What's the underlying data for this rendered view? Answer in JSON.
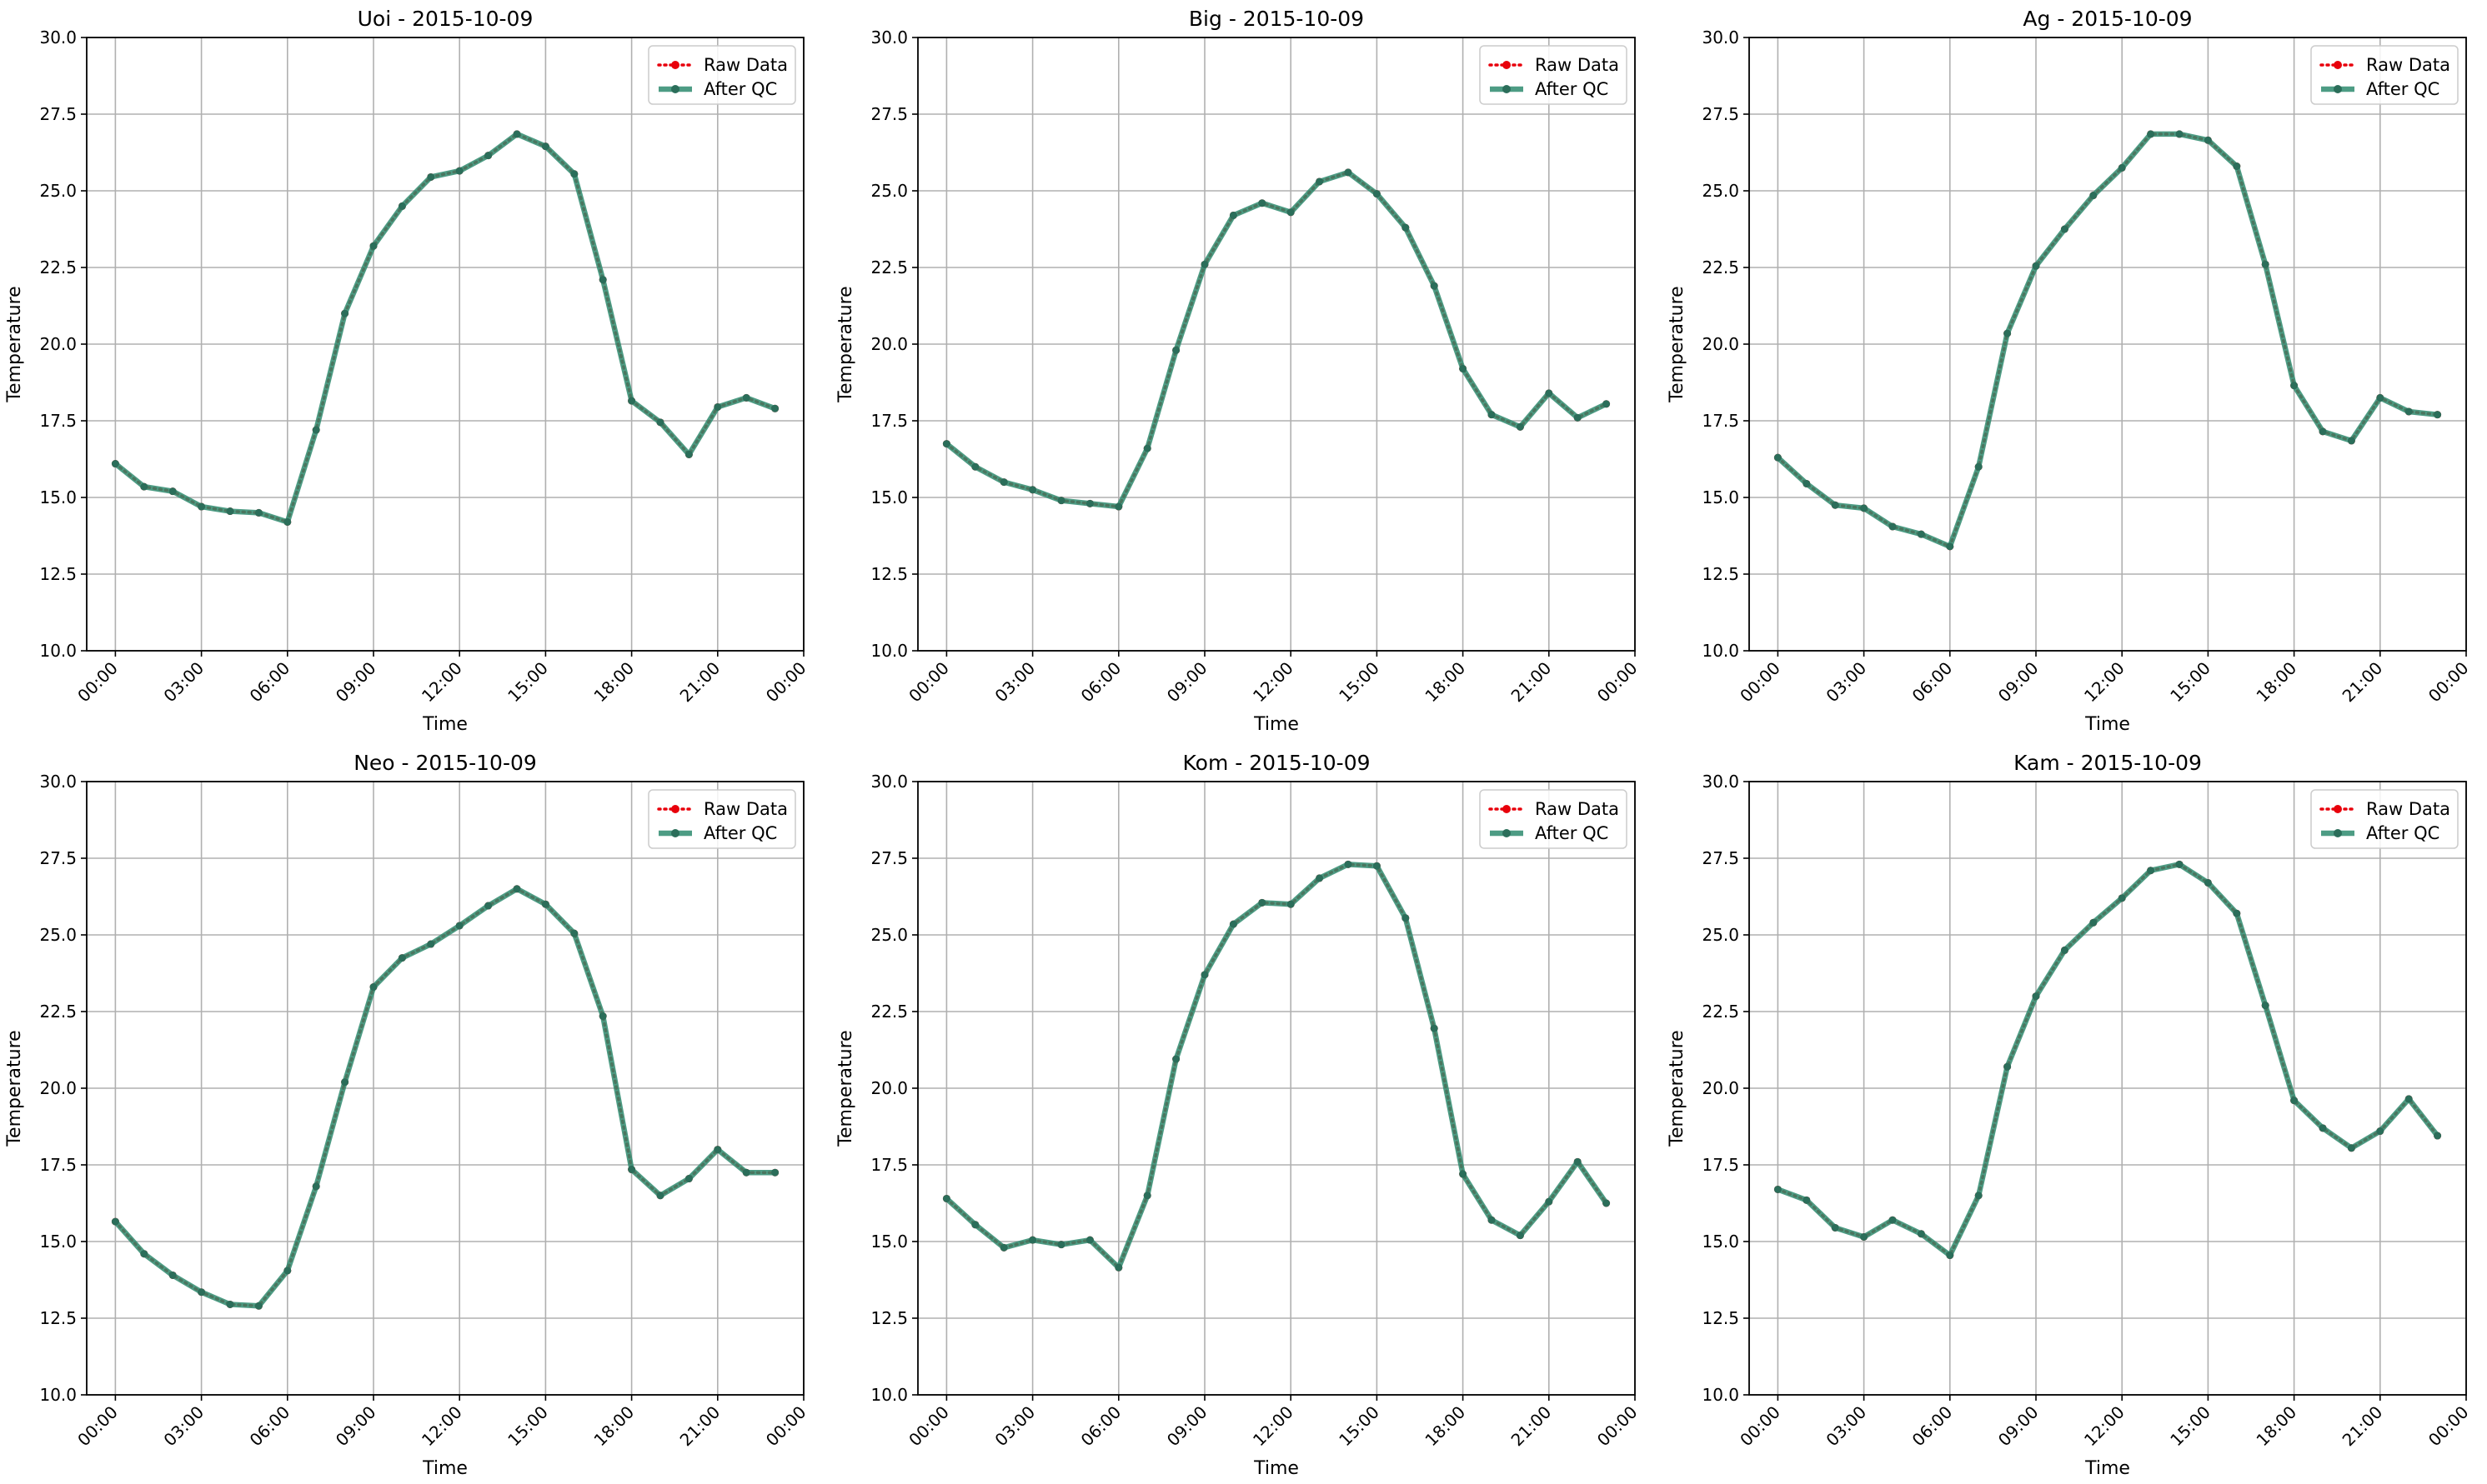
{
  "colors": {
    "raw": "#e8000b",
    "qc": "#2e8b6e",
    "grid": "#b0b0b0",
    "axis": "#000000",
    "background": "#ffffff"
  },
  "chart_data": [
    {
      "type": "line",
      "title": "Uoi - 2015-10-09",
      "xlabel": "Time",
      "ylabel": "Temperature",
      "xlim_hours": [
        -1,
        24.0
      ],
      "ylim": [
        10.0,
        30.0
      ],
      "x_ticks": [
        "00:00",
        "03:00",
        "06:00",
        "09:00",
        "12:00",
        "15:00",
        "18:00",
        "21:00",
        "00:00"
      ],
      "y_ticks": [
        "10.0",
        "12.5",
        "15.0",
        "17.5",
        "20.0",
        "22.5",
        "25.0",
        "27.5",
        "30.0"
      ],
      "grid": true,
      "legend": "top-right",
      "x_hours": [
        0,
        1,
        2,
        3,
        4,
        5,
        6,
        7,
        8,
        9,
        10,
        11,
        12,
        13,
        14,
        15,
        16,
        17,
        18,
        19,
        20,
        21,
        22,
        23
      ],
      "series": [
        {
          "name": "Raw Data",
          "values": [
            16.1,
            15.35,
            15.2,
            14.7,
            14.55,
            14.5,
            14.2,
            17.2,
            21.0,
            23.2,
            24.5,
            25.45,
            25.65,
            26.15,
            26.85,
            26.45,
            25.55,
            22.1,
            18.15,
            17.45,
            16.4,
            17.95,
            18.25,
            17.9
          ]
        },
        {
          "name": "After QC",
          "values": [
            16.1,
            15.35,
            15.2,
            14.7,
            14.55,
            14.5,
            14.2,
            17.2,
            21.0,
            23.2,
            24.5,
            25.45,
            25.65,
            26.15,
            26.85,
            26.45,
            25.55,
            22.1,
            18.15,
            17.45,
            16.4,
            17.95,
            18.25,
            17.9
          ]
        }
      ]
    },
    {
      "type": "line",
      "title": "Big - 2015-10-09",
      "xlabel": "Time",
      "ylabel": "Temperature",
      "xlim_hours": [
        -1,
        24.0
      ],
      "ylim": [
        10.0,
        30.0
      ],
      "x_ticks": [
        "00:00",
        "03:00",
        "06:00",
        "09:00",
        "12:00",
        "15:00",
        "18:00",
        "21:00",
        "00:00"
      ],
      "y_ticks": [
        "10.0",
        "12.5",
        "15.0",
        "17.5",
        "20.0",
        "22.5",
        "25.0",
        "27.5",
        "30.0"
      ],
      "grid": true,
      "legend": "top-right",
      "x_hours": [
        0,
        1,
        2,
        3,
        4,
        5,
        6,
        7,
        8,
        9,
        10,
        11,
        12,
        13,
        14,
        15,
        16,
        17,
        18,
        19,
        20,
        21,
        22,
        23
      ],
      "series": [
        {
          "name": "Raw Data",
          "values": [
            16.75,
            16.0,
            15.5,
            15.25,
            14.9,
            14.8,
            14.7,
            16.6,
            19.8,
            22.6,
            24.2,
            24.6,
            24.3,
            25.3,
            25.6,
            24.9,
            23.8,
            21.9,
            19.2,
            17.7,
            17.3,
            18.4,
            17.6,
            18.05
          ]
        },
        {
          "name": "After QC",
          "values": [
            16.75,
            16.0,
            15.5,
            15.25,
            14.9,
            14.8,
            14.7,
            16.6,
            19.8,
            22.6,
            24.2,
            24.6,
            24.3,
            25.3,
            25.6,
            24.9,
            23.8,
            21.9,
            19.2,
            17.7,
            17.3,
            18.4,
            17.6,
            18.05
          ]
        }
      ]
    },
    {
      "type": "line",
      "title": "Ag - 2015-10-09",
      "xlabel": "Time",
      "ylabel": "Temperature",
      "xlim_hours": [
        -1,
        24.0
      ],
      "ylim": [
        10.0,
        30.0
      ],
      "x_ticks": [
        "00:00",
        "03:00",
        "06:00",
        "09:00",
        "12:00",
        "15:00",
        "18:00",
        "21:00",
        "00:00"
      ],
      "y_ticks": [
        "10.0",
        "12.5",
        "15.0",
        "17.5",
        "20.0",
        "22.5",
        "25.0",
        "27.5",
        "30.0"
      ],
      "grid": true,
      "legend": "top-right",
      "x_hours": [
        0,
        1,
        2,
        3,
        4,
        5,
        6,
        7,
        8,
        9,
        10,
        11,
        12,
        13,
        14,
        15,
        16,
        17,
        18,
        19,
        20,
        21,
        22,
        23
      ],
      "series": [
        {
          "name": "Raw Data",
          "values": [
            16.3,
            15.45,
            14.75,
            14.65,
            14.05,
            13.8,
            13.4,
            16.0,
            20.35,
            22.55,
            23.75,
            24.85,
            25.75,
            26.85,
            26.85,
            26.65,
            25.8,
            22.6,
            18.65,
            17.15,
            16.85,
            18.25,
            17.8,
            17.7
          ]
        },
        {
          "name": "After QC",
          "values": [
            16.3,
            15.45,
            14.75,
            14.65,
            14.05,
            13.8,
            13.4,
            16.0,
            20.35,
            22.55,
            23.75,
            24.85,
            25.75,
            26.85,
            26.85,
            26.65,
            25.8,
            22.6,
            18.65,
            17.15,
            16.85,
            18.25,
            17.8,
            17.7
          ]
        }
      ]
    },
    {
      "type": "line",
      "title": "Neo - 2015-10-09",
      "xlabel": "Time",
      "ylabel": "Temperature",
      "xlim_hours": [
        -1,
        24.0
      ],
      "ylim": [
        10.0,
        30.0
      ],
      "x_ticks": [
        "00:00",
        "03:00",
        "06:00",
        "09:00",
        "12:00",
        "15:00",
        "18:00",
        "21:00",
        "00:00"
      ],
      "y_ticks": [
        "10.0",
        "12.5",
        "15.0",
        "17.5",
        "20.0",
        "22.5",
        "25.0",
        "27.5",
        "30.0"
      ],
      "grid": true,
      "legend": "top-right",
      "x_hours": [
        0,
        1,
        2,
        3,
        4,
        5,
        6,
        7,
        8,
        9,
        10,
        11,
        12,
        13,
        14,
        15,
        16,
        17,
        18,
        19,
        20,
        21,
        22,
        23
      ],
      "series": [
        {
          "name": "Raw Data",
          "values": [
            15.65,
            14.6,
            13.9,
            13.35,
            12.95,
            12.9,
            14.05,
            16.8,
            20.2,
            23.3,
            24.25,
            24.7,
            25.3,
            25.95,
            26.5,
            26.0,
            25.05,
            22.35,
            17.35,
            16.5,
            17.05,
            18.0,
            17.25,
            17.25
          ]
        },
        {
          "name": "After QC",
          "values": [
            15.65,
            14.6,
            13.9,
            13.35,
            12.95,
            12.9,
            14.05,
            16.8,
            20.2,
            23.3,
            24.25,
            24.7,
            25.3,
            25.95,
            26.5,
            26.0,
            25.05,
            22.35,
            17.35,
            16.5,
            17.05,
            18.0,
            17.25,
            17.25
          ]
        }
      ]
    },
    {
      "type": "line",
      "title": "Kom - 2015-10-09",
      "xlabel": "Time",
      "ylabel": "Temperature",
      "xlim_hours": [
        -1,
        24.0
      ],
      "ylim": [
        10.0,
        30.0
      ],
      "x_ticks": [
        "00:00",
        "03:00",
        "06:00",
        "09:00",
        "12:00",
        "15:00",
        "18:00",
        "21:00",
        "00:00"
      ],
      "y_ticks": [
        "10.0",
        "12.5",
        "15.0",
        "17.5",
        "20.0",
        "22.5",
        "25.0",
        "27.5",
        "30.0"
      ],
      "grid": true,
      "legend": "top-right",
      "x_hours": [
        0,
        1,
        2,
        3,
        4,
        5,
        6,
        7,
        8,
        9,
        10,
        11,
        12,
        13,
        14,
        15,
        16,
        17,
        18,
        19,
        20,
        21,
        22,
        23
      ],
      "series": [
        {
          "name": "Raw Data",
          "values": [
            16.4,
            15.55,
            14.8,
            15.05,
            14.9,
            15.05,
            14.15,
            16.5,
            20.95,
            23.7,
            25.35,
            26.05,
            26.0,
            26.85,
            27.3,
            27.25,
            25.55,
            21.95,
            17.2,
            15.7,
            15.2,
            16.3,
            17.6,
            16.25
          ]
        },
        {
          "name": "After QC",
          "values": [
            16.4,
            15.55,
            14.8,
            15.05,
            14.9,
            15.05,
            14.15,
            16.5,
            20.95,
            23.7,
            25.35,
            26.05,
            26.0,
            26.85,
            27.3,
            27.25,
            25.55,
            21.95,
            17.2,
            15.7,
            15.2,
            16.3,
            17.6,
            16.25
          ]
        }
      ]
    },
    {
      "type": "line",
      "title": "Kam - 2015-10-09",
      "xlabel": "Time",
      "ylabel": "Temperature",
      "xlim_hours": [
        -1,
        24.0
      ],
      "ylim": [
        10.0,
        30.0
      ],
      "x_ticks": [
        "00:00",
        "03:00",
        "06:00",
        "09:00",
        "12:00",
        "15:00",
        "18:00",
        "21:00",
        "00:00"
      ],
      "y_ticks": [
        "10.0",
        "12.5",
        "15.0",
        "17.5",
        "20.0",
        "22.5",
        "25.0",
        "27.5",
        "30.0"
      ],
      "grid": true,
      "legend": "top-right",
      "x_hours": [
        0,
        1,
        2,
        3,
        4,
        5,
        6,
        7,
        8,
        9,
        10,
        11,
        12,
        13,
        14,
        15,
        16,
        17,
        18,
        19,
        20,
        21,
        22,
        23
      ],
      "series": [
        {
          "name": "Raw Data",
          "values": [
            16.7,
            16.35,
            15.45,
            15.15,
            15.7,
            15.25,
            14.55,
            16.5,
            20.7,
            23.0,
            24.5,
            25.4,
            26.2,
            27.1,
            27.3,
            26.7,
            25.7,
            22.7,
            19.6,
            18.7,
            18.05,
            18.6,
            19.65,
            18.45
          ]
        },
        {
          "name": "After QC",
          "values": [
            16.7,
            16.35,
            15.45,
            15.15,
            15.7,
            15.25,
            14.55,
            16.5,
            20.7,
            23.0,
            24.5,
            25.4,
            26.2,
            27.1,
            27.3,
            26.7,
            25.7,
            22.7,
            19.6,
            18.7,
            18.05,
            18.6,
            19.65,
            18.45
          ]
        }
      ]
    }
  ]
}
